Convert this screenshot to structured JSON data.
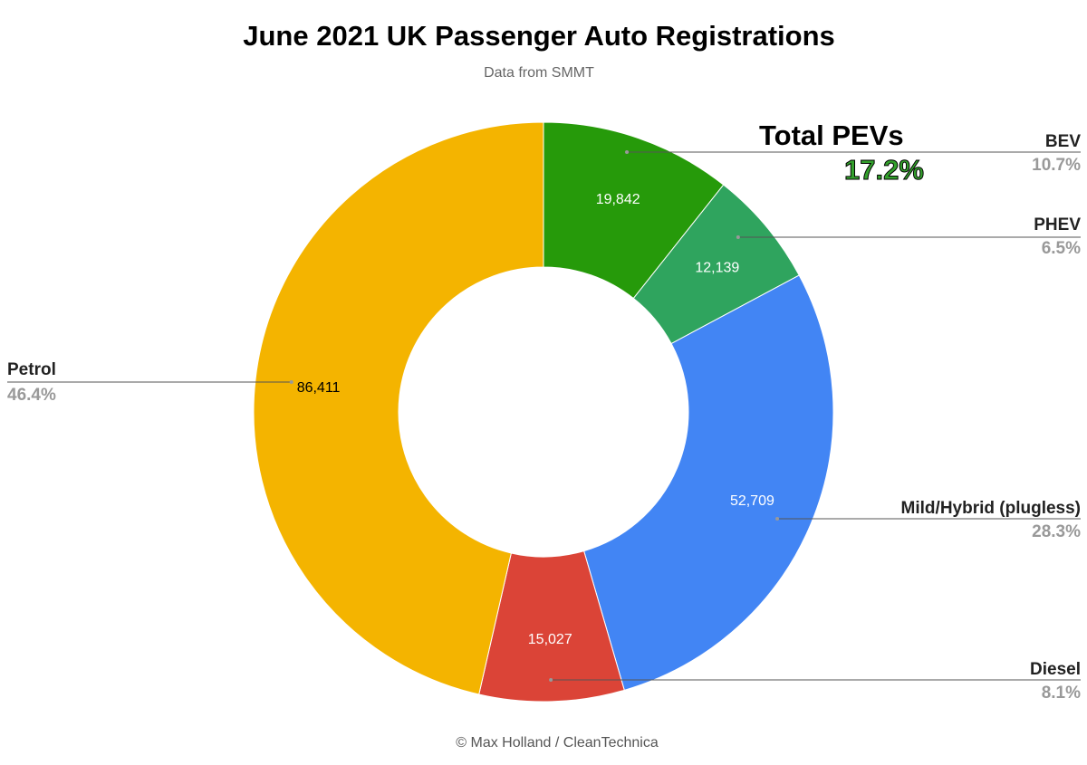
{
  "title": "June 2021 UK Passenger Auto Registrations",
  "subtitle": "Data from SMMT",
  "footer": "© Max Holland / CleanTechnica",
  "annotation": {
    "label": "Total PEVs",
    "value": "17.2%",
    "color": "#2e9a2a"
  },
  "chart_data": {
    "type": "pie",
    "donut": true,
    "slices": [
      {
        "name": "BEV",
        "value": 19842,
        "value_label": "19,842",
        "percent": "10.7%",
        "color": "#269a0a"
      },
      {
        "name": "PHEV",
        "value": 12139,
        "value_label": "12,139",
        "percent": "6.5%",
        "color": "#2fa45e"
      },
      {
        "name": "Mild/Hybrid (plugless)",
        "value": 52709,
        "value_label": "52,709",
        "percent": "28.3%",
        "color": "#4285f4"
      },
      {
        "name": "Diesel",
        "value": 15027,
        "value_label": "15,027",
        "percent": "8.1%",
        "color": "#db4437"
      },
      {
        "name": "Petrol",
        "value": 86411,
        "value_label": "86,411",
        "percent": "46.4%",
        "color": "#f4b400"
      }
    ]
  }
}
